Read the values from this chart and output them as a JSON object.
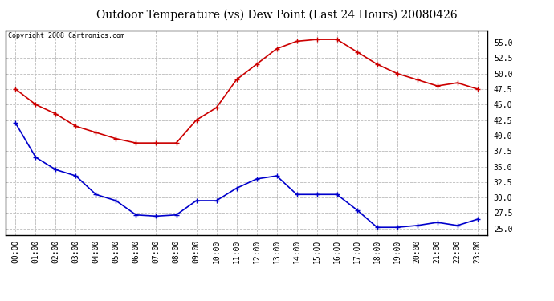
{
  "title": "Outdoor Temperature (vs) Dew Point (Last 24 Hours) 20080426",
  "copyright_text": "Copyright 2008 Cartronics.com",
  "x_labels": [
    "00:00",
    "01:00",
    "02:00",
    "03:00",
    "04:00",
    "05:00",
    "06:00",
    "07:00",
    "08:00",
    "09:00",
    "10:00",
    "11:00",
    "12:00",
    "13:00",
    "14:00",
    "15:00",
    "16:00",
    "17:00",
    "18:00",
    "19:00",
    "20:00",
    "21:00",
    "22:00",
    "23:00"
  ],
  "temp_data": [
    47.5,
    45.0,
    43.5,
    41.5,
    40.5,
    39.5,
    38.8,
    38.8,
    38.8,
    42.5,
    44.5,
    49.0,
    51.5,
    54.0,
    55.2,
    55.5,
    55.5,
    53.5,
    51.5,
    50.0,
    49.0,
    48.0,
    48.5,
    47.5
  ],
  "dew_data": [
    42.0,
    36.5,
    34.5,
    33.5,
    30.5,
    29.5,
    27.2,
    27.0,
    27.2,
    29.5,
    29.5,
    31.5,
    33.0,
    33.5,
    30.5,
    30.5,
    30.5,
    28.0,
    25.2,
    25.2,
    25.5,
    26.0,
    25.5,
    26.5
  ],
  "temp_color": "#cc0000",
  "dew_color": "#0000cc",
  "bg_color": "#ffffff",
  "plot_bg_color": "#ffffff",
  "grid_color": "#bbbbbb",
  "ylim": [
    24.0,
    57.0
  ],
  "yticks": [
    25.0,
    27.5,
    30.0,
    32.5,
    35.0,
    37.5,
    40.0,
    42.5,
    45.0,
    47.5,
    50.0,
    52.5,
    55.0
  ],
  "marker": "+",
  "marker_size": 5,
  "linewidth": 1.2,
  "title_fontsize": 10,
  "tick_fontsize": 7,
  "copyright_fontsize": 6
}
